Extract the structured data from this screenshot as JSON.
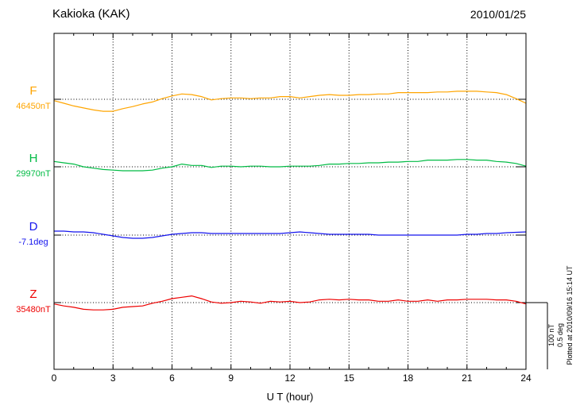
{
  "header": {
    "title": "Kakioka (KAK)",
    "date": "2010/01/25"
  },
  "x_axis": {
    "label": "U T (hour)"
  },
  "side_note": "Plotted at 2010/09/16 15:14 UT",
  "scale_bar": {
    "nt_label": "100 nT",
    "deg_label": "0.5 deg"
  },
  "chart_data": {
    "type": "line",
    "title": "Kakioka (KAK)",
    "subtitle": "2010/01/25",
    "xlabel": "U T (hour)",
    "x_range": [
      0,
      24
    ],
    "x_ticks": [
      0,
      3,
      6,
      9,
      12,
      15,
      18,
      21,
      24
    ],
    "x_gridlines": [
      3,
      6,
      9,
      12,
      15,
      18,
      21
    ],
    "grid": "dotted-vertical",
    "legend_position": "left-of-traces",
    "scale": {
      "nt": 100,
      "deg": 0.5
    },
    "series": [
      {
        "name": "F",
        "unit": "nT",
        "color": "#FFA500",
        "baseline": 46450,
        "baseline_label": "46450nT",
        "x_start": 0,
        "x_step": 0.5,
        "values": [
          46448,
          46444,
          46440,
          46437,
          46434,
          46432,
          46432,
          46436,
          46439,
          46443,
          46446,
          46451,
          46455,
          46458,
          46457,
          46454,
          46449,
          46451,
          46452,
          46452,
          46451,
          46452,
          46452,
          46454,
          46454,
          46452,
          46454,
          46456,
          46457,
          46456,
          46456,
          46457,
          46457,
          46458,
          46458,
          46460,
          46460,
          46460,
          46460,
          46461,
          46461,
          46462,
          46462,
          46462,
          46461,
          46460,
          46457,
          46451,
          46444
        ]
      },
      {
        "name": "H",
        "unit": "nT",
        "color": "#00BB44",
        "baseline": 29970,
        "baseline_label": "29970nT",
        "x_start": 0,
        "x_step": 0.5,
        "values": [
          29978,
          29976,
          29974,
          29970,
          29968,
          29966,
          29965,
          29964,
          29964,
          29964,
          29965,
          29968,
          29970,
          29974,
          29972,
          29972,
          29969,
          29971,
          29971,
          29970,
          29971,
          29971,
          29970,
          29970,
          29971,
          29971,
          29971,
          29972,
          29974,
          29974,
          29975,
          29975,
          29976,
          29976,
          29977,
          29977,
          29978,
          29978,
          29980,
          29980,
          29980,
          29981,
          29981,
          29980,
          29980,
          29978,
          29977,
          29975,
          29971
        ]
      },
      {
        "name": "D",
        "unit": "deg",
        "color": "#1515EE",
        "baseline": -7.1,
        "baseline_label": "-7.1deg",
        "x_start": 0,
        "x_step": 0.5,
        "values": [
          -7.07,
          -7.07,
          -7.076,
          -7.076,
          -7.082,
          -7.094,
          -7.106,
          -7.118,
          -7.124,
          -7.124,
          -7.118,
          -7.106,
          -7.094,
          -7.088,
          -7.082,
          -7.082,
          -7.088,
          -7.088,
          -7.088,
          -7.088,
          -7.088,
          -7.088,
          -7.088,
          -7.088,
          -7.082,
          -7.076,
          -7.082,
          -7.088,
          -7.094,
          -7.094,
          -7.094,
          -7.094,
          -7.094,
          -7.1,
          -7.1,
          -7.1,
          -7.1,
          -7.1,
          -7.1,
          -7.1,
          -7.1,
          -7.1,
          -7.094,
          -7.094,
          -7.088,
          -7.088,
          -7.082,
          -7.079,
          -7.076
        ]
      },
      {
        "name": "Z",
        "unit": "nT",
        "color": "#EE0000",
        "baseline": 35480,
        "baseline_label": "35480nT",
        "x_start": 0,
        "x_step": 0.5,
        "values": [
          35478,
          35475,
          35473,
          35470,
          35469,
          35469,
          35470,
          35473,
          35474,
          35475,
          35479,
          35482,
          35486,
          35488,
          35490,
          35486,
          35481,
          35479,
          35480,
          35482,
          35481,
          35479,
          35482,
          35481,
          35482,
          35480,
          35481,
          35484,
          35485,
          35484,
          35485,
          35484,
          35484,
          35482,
          35482,
          35484,
          35482,
          35482,
          35484,
          35482,
          35484,
          35484,
          35485,
          35485,
          35485,
          35484,
          35484,
          35482,
          35478
        ]
      }
    ]
  }
}
